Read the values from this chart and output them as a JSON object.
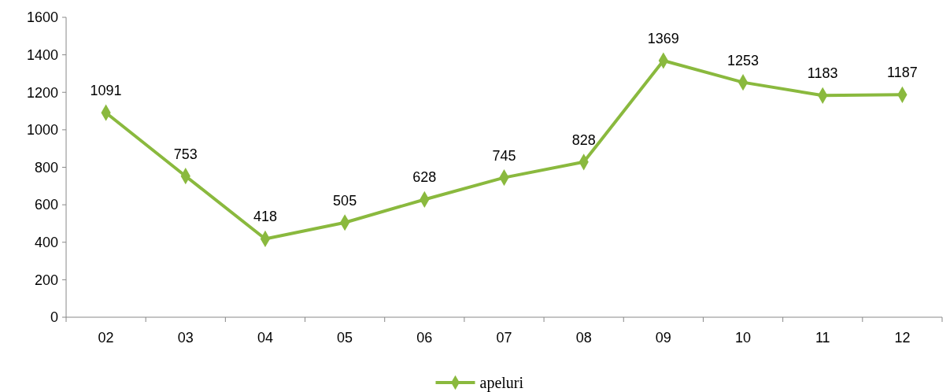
{
  "chart_data": {
    "type": "line",
    "categories": [
      "02",
      "03",
      "04",
      "05",
      "06",
      "07",
      "08",
      "09",
      "10",
      "11",
      "12"
    ],
    "series": [
      {
        "name": "apeluri",
        "color": "#8ab93e",
        "values": [
          1091,
          753,
          418,
          505,
          628,
          745,
          828,
          1369,
          1253,
          1183,
          1187
        ]
      }
    ],
    "ylim": [
      0,
      1600
    ],
    "yticks": [
      0,
      200,
      400,
      600,
      800,
      1000,
      1200,
      1400,
      1600
    ],
    "grid": false,
    "legend": "bottom",
    "marker": "diamond",
    "line_style": "solid",
    "data_labels": true
  }
}
